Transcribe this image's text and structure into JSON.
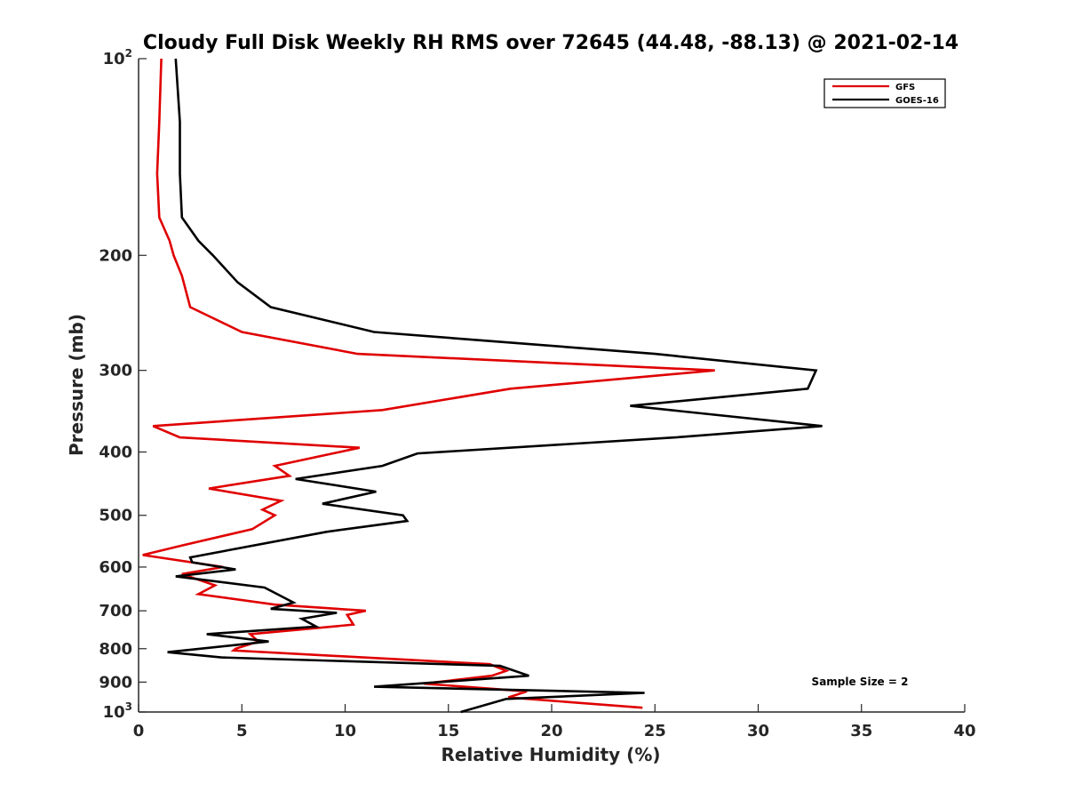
{
  "chart_data": {
    "type": "line",
    "title": "Cloudy Full Disk Weekly RH RMS over 72645 (44.48, -88.13) @ 2021-02-14",
    "xlabel": "Relative Humidity (%)",
    "ylabel": "Pressure (mb)",
    "xlim": [
      0,
      40
    ],
    "ylim": [
      100,
      1000
    ],
    "y_scale": "log",
    "y_reversed": true,
    "grid": false,
    "legend": "top-right",
    "x_ticks": [
      0,
      5,
      10,
      15,
      20,
      25,
      30,
      35,
      40
    ],
    "y_ticks": [
      {
        "value": 100,
        "label": "10",
        "sup": "2"
      },
      {
        "value": 200,
        "label": "200",
        "sup": ""
      },
      {
        "value": 300,
        "label": "300",
        "sup": ""
      },
      {
        "value": 400,
        "label": "400",
        "sup": ""
      },
      {
        "value": 500,
        "label": "500",
        "sup": ""
      },
      {
        "value": 600,
        "label": "600",
        "sup": ""
      },
      {
        "value": 700,
        "label": "700",
        "sup": ""
      },
      {
        "value": 800,
        "label": "800",
        "sup": ""
      },
      {
        "value": 900,
        "label": "900",
        "sup": ""
      },
      {
        "value": 1000,
        "label": "10",
        "sup": "3"
      }
    ],
    "annotation": "Sample Size = 2",
    "series": [
      {
        "name": "GFS",
        "color": "#e00000",
        "points": [
          [
            1.1,
            100
          ],
          [
            1.0,
            125
          ],
          [
            0.9,
            150
          ],
          [
            1.0,
            175
          ],
          [
            1.5,
            190
          ],
          [
            1.7,
            200
          ],
          [
            2.1,
            215
          ],
          [
            2.5,
            240
          ],
          [
            5.0,
            262
          ],
          [
            10.6,
            283
          ],
          [
            27.9,
            300
          ],
          [
            18.0,
            320
          ],
          [
            11.8,
            345
          ],
          [
            0.7,
            365
          ],
          [
            2.0,
            380
          ],
          [
            10.7,
            394
          ],
          [
            6.6,
            420
          ],
          [
            7.3,
            435
          ],
          [
            3.4,
            455
          ],
          [
            6.9,
            475
          ],
          [
            6.0,
            490
          ],
          [
            6.6,
            500
          ],
          [
            5.5,
            525
          ],
          [
            2.2,
            555
          ],
          [
            0.2,
            575
          ],
          [
            4.1,
            600
          ],
          [
            2.1,
            615
          ],
          [
            3.7,
            640
          ],
          [
            2.9,
            660
          ],
          [
            6.6,
            685
          ],
          [
            11.0,
            700
          ],
          [
            10.1,
            710
          ],
          [
            10.4,
            735
          ],
          [
            5.4,
            760
          ],
          [
            5.8,
            780
          ],
          [
            4.7,
            800
          ],
          [
            4.6,
            805
          ],
          [
            17.0,
            845
          ],
          [
            17.8,
            865
          ],
          [
            17.1,
            880
          ],
          [
            13.8,
            905
          ],
          [
            18.8,
            930
          ],
          [
            17.9,
            950
          ],
          [
            24.4,
            985
          ]
        ]
      },
      {
        "name": "GOES-16",
        "color": "#000000",
        "points": [
          [
            1.8,
            100
          ],
          [
            2.0,
            125
          ],
          [
            2.0,
            150
          ],
          [
            2.1,
            175
          ],
          [
            2.9,
            190
          ],
          [
            3.6,
            200
          ],
          [
            4.8,
            220
          ],
          [
            6.4,
            240
          ],
          [
            11.4,
            262
          ],
          [
            25.0,
            283
          ],
          [
            32.8,
            300
          ],
          [
            32.4,
            320
          ],
          [
            23.8,
            340
          ],
          [
            33.1,
            365
          ],
          [
            26.0,
            380
          ],
          [
            13.5,
            402
          ],
          [
            11.8,
            420
          ],
          [
            7.6,
            440
          ],
          [
            11.5,
            460
          ],
          [
            8.9,
            480
          ],
          [
            12.8,
            500
          ],
          [
            13.0,
            510
          ],
          [
            9.1,
            530
          ],
          [
            2.5,
            580
          ],
          [
            2.6,
            590
          ],
          [
            4.7,
            605
          ],
          [
            1.8,
            620
          ],
          [
            6.1,
            645
          ],
          [
            7.5,
            680
          ],
          [
            6.4,
            695
          ],
          [
            9.6,
            705
          ],
          [
            7.9,
            720
          ],
          [
            8.6,
            740
          ],
          [
            3.3,
            760
          ],
          [
            6.3,
            780
          ],
          [
            1.4,
            810
          ],
          [
            4.0,
            825
          ],
          [
            17.5,
            850
          ],
          [
            18.9,
            880
          ],
          [
            11.4,
            915
          ],
          [
            24.5,
            935
          ],
          [
            17.8,
            955
          ],
          [
            15.6,
            1000
          ]
        ]
      }
    ]
  }
}
